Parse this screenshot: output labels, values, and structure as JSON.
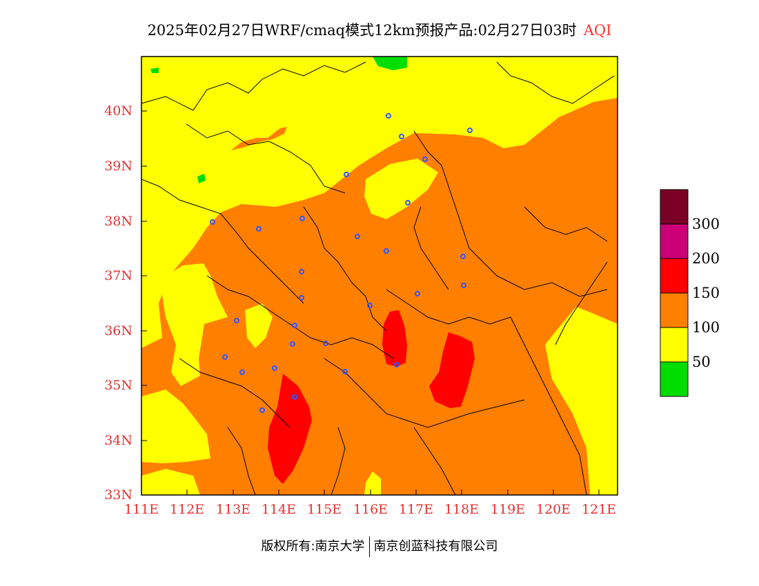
{
  "title": {
    "main": "2025年02月27日WRF/cmaq模式12km预报产品:02月27日03时",
    "variable": "AQI"
  },
  "axes": {
    "x_ticks": [
      "111E",
      "112E",
      "113E",
      "114E",
      "115E",
      "116E",
      "117E",
      "118E",
      "119E",
      "120E",
      "121E"
    ],
    "y_ticks": [
      "40N",
      "39N",
      "38N",
      "37N",
      "36N",
      "35N",
      "34N",
      "33N"
    ],
    "lon_range": [
      111,
      121.4
    ],
    "lat_range": [
      33,
      41
    ]
  },
  "legend": {
    "labels": [
      "300",
      "200",
      "150",
      "100",
      "50"
    ],
    "colors": [
      "#7a0026",
      "#cc0077",
      "#ff0000",
      "#ff7f00",
      "#ffff00",
      "#00dd00"
    ]
  },
  "credit": {
    "left": "版权所有:南京大学",
    "right": "南京创蓝科技有限公司"
  },
  "colors": {
    "good": "#00dd00",
    "moderate": "#ffff00",
    "unhealthy_sensitive": "#ff7f00",
    "unhealthy": "#ff0000",
    "station_marker": "#3355ff"
  }
}
